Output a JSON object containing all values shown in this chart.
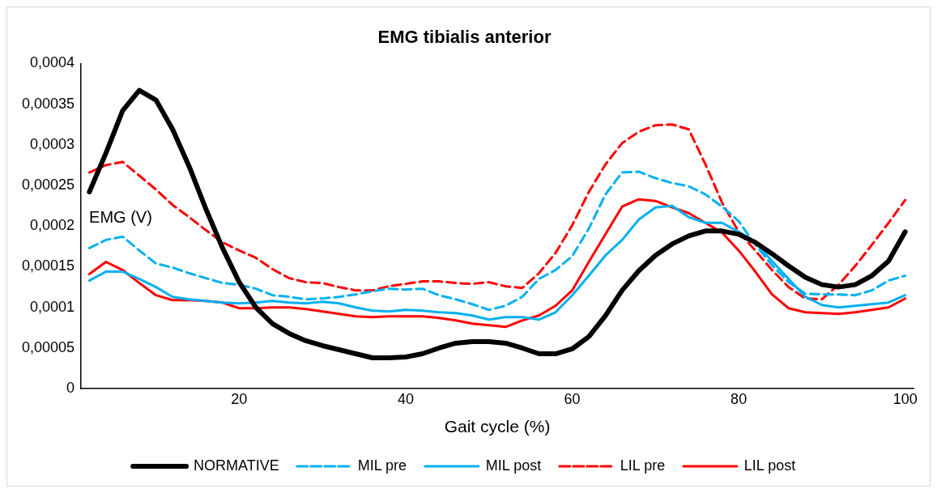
{
  "chart_data": {
    "type": "line",
    "title": "EMG tibialis anterior",
    "xlabel": "Gait cycle (%)",
    "ylabel": "EMG (V)",
    "x": [
      2,
      4,
      6,
      8,
      10,
      12,
      14,
      16,
      18,
      20,
      22,
      24,
      26,
      28,
      30,
      32,
      34,
      36,
      38,
      40,
      42,
      44,
      46,
      48,
      50,
      52,
      54,
      56,
      58,
      60,
      62,
      64,
      66,
      68,
      70,
      72,
      74,
      76,
      78,
      80,
      82,
      84,
      86,
      88,
      90,
      92,
      94,
      96,
      98,
      100
    ],
    "xlim": [
      1,
      101
    ],
    "xticks": [
      20,
      40,
      60,
      80,
      100
    ],
    "ylim": [
      0,
      0.0004
    ],
    "yticks": [
      0,
      {
        "value": 5e-05,
        "label": "0,00005"
      },
      {
        "value": 0.0001,
        "label": "0,0001"
      },
      {
        "value": 0.00015,
        "label": "0,00015"
      },
      {
        "value": 0.0002,
        "label": "0,0002"
      },
      {
        "value": 0.00025,
        "label": "0,00025"
      },
      {
        "value": 0.0003,
        "label": "0,0003"
      },
      {
        "value": 0.00035,
        "label": "0,00035"
      },
      {
        "value": 0.0004,
        "label": "0,0004"
      }
    ],
    "grid": false,
    "legend": "bottom",
    "marker": "none",
    "series": [
      {
        "name": "NORMATIVE",
        "color": "#000000",
        "line_style": "solid",
        "values": [
          0.000242,
          0.00029,
          0.000342,
          0.000367,
          0.000355,
          0.000319,
          0.000273,
          0.000221,
          0.000173,
          0.000131,
          0.0001,
          8e-05,
          6.8e-05,
          5.9e-05,
          5.3e-05,
          4.8e-05,
          4.3e-05,
          3.8e-05,
          3.8e-05,
          3.9e-05,
          4.3e-05,
          5e-05,
          5.6e-05,
          5.8e-05,
          5.8e-05,
          5.6e-05,
          5e-05,
          4.3e-05,
          4.3e-05,
          4.9e-05,
          6.4e-05,
          9e-05,
          0.000121,
          0.000145,
          0.000164,
          0.000178,
          0.000188,
          0.000194,
          0.000194,
          0.00019,
          0.00018,
          0.000166,
          0.000151,
          0.000137,
          0.000128,
          0.000125,
          0.000128,
          0.000139,
          0.000157,
          0.000193
        ]
      },
      {
        "name": "MIL pre",
        "color": "#00b0f0",
        "line_style": "dashed",
        "values": [
          0.000173,
          0.000183,
          0.000187,
          0.00017,
          0.000154,
          0.000149,
          0.000142,
          0.000136,
          0.00013,
          0.000128,
          0.000123,
          0.000115,
          0.000113,
          0.00011,
          0.000111,
          0.000113,
          0.000116,
          0.00012,
          0.000123,
          0.000122,
          0.000123,
          0.000115,
          0.00011,
          0.000104,
          9.7e-05,
          0.000102,
          0.000113,
          0.000135,
          0.000146,
          0.000163,
          0.000197,
          0.000239,
          0.000266,
          0.000267,
          0.000259,
          0.000253,
          0.000249,
          0.000239,
          0.000224,
          0.000206,
          0.000177,
          0.000152,
          0.000131,
          0.000117,
          0.000116,
          0.000116,
          0.000115,
          0.000121,
          0.000133,
          0.000139
        ]
      },
      {
        "name": "MIL post",
        "color": "#00b0f0",
        "line_style": "solid",
        "values": [
          0.000133,
          0.000144,
          0.000144,
          0.000135,
          0.000125,
          0.000113,
          0.00011,
          0.000108,
          0.000106,
          0.000105,
          0.000106,
          0.000108,
          0.000106,
          0.000105,
          0.000107,
          0.000105,
          0.0001,
          9.6e-05,
          9.5e-05,
          9.7e-05,
          9.6e-05,
          9.4e-05,
          9.3e-05,
          9e-05,
          8.5e-05,
          8.8e-05,
          8.8e-05,
          8.5e-05,
          9.4e-05,
          0.000115,
          0.000139,
          0.000164,
          0.000183,
          0.000208,
          0.000223,
          0.000225,
          0.000211,
          0.000204,
          0.000204,
          0.000193,
          0.00018,
          0.000157,
          0.000135,
          0.000113,
          0.000103,
          0.0001,
          0.000102,
          0.000104,
          0.000106,
          0.000115
        ]
      },
      {
        "name": "LIL pre",
        "color": "#ff0000",
        "line_style": "dashed",
        "values": [
          0.000266,
          0.000275,
          0.000279,
          0.000262,
          0.000245,
          0.000226,
          0.000211,
          0.000195,
          0.00018,
          0.00017,
          0.000161,
          0.000147,
          0.000136,
          0.000131,
          0.00013,
          0.000125,
          0.000121,
          0.000121,
          0.000126,
          0.000129,
          0.000132,
          0.000132,
          0.00013,
          0.000129,
          0.000131,
          0.000126,
          0.000124,
          0.000142,
          0.000167,
          0.000201,
          0.000242,
          0.000276,
          0.000302,
          0.000316,
          0.000324,
          0.000325,
          0.000319,
          0.000276,
          0.000229,
          0.000193,
          0.00017,
          0.000146,
          0.000125,
          0.000111,
          0.00011,
          0.000128,
          0.000151,
          0.000177,
          0.000204,
          0.000232
        ]
      },
      {
        "name": "LIL post",
        "color": "#ff0000",
        "line_style": "solid",
        "values": [
          0.000141,
          0.000156,
          0.000146,
          0.00013,
          0.000115,
          0.000109,
          0.000109,
          0.000108,
          0.000106,
          9.9e-05,
          9.9e-05,
          0.0001,
          0.0001,
          9.8e-05,
          9.5e-05,
          9.2e-05,
          8.9e-05,
          8.8e-05,
          8.9e-05,
          8.9e-05,
          8.9e-05,
          8.7e-05,
          8.4e-05,
          8e-05,
          7.8e-05,
          7.6e-05,
          8.4e-05,
          9e-05,
          0.000102,
          0.000121,
          0.000156,
          0.00019,
          0.000224,
          0.000233,
          0.000231,
          0.000223,
          0.000216,
          0.000204,
          0.000192,
          0.00017,
          0.000144,
          0.000116,
          9.9e-05,
          9.4e-05,
          9.3e-05,
          9.2e-05,
          9.4e-05,
          9.7e-05,
          0.0001,
          0.000111
        ]
      }
    ]
  }
}
